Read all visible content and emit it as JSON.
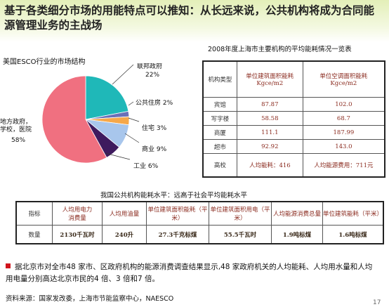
{
  "title": "基于各类细分市场的用能特点可以推知：从长远来说，公共机构将成为合同能源管理业务的主战场",
  "chart_data": {
    "type": "pie",
    "title": "美国ESCO行业的市场结构",
    "slices": [
      {
        "label": "联邦政府",
        "value": 22,
        "value_label": "22%",
        "color": "#1fb8b8"
      },
      {
        "label": "公共住房",
        "value": 2,
        "value_label": "2%",
        "color": "#6a70b8"
      },
      {
        "label": "住宅",
        "value": 3,
        "value_label": "3%",
        "color": "#f6a84a"
      },
      {
        "label": "商业",
        "value": 9,
        "value_label": "9%",
        "color": "#a8c6ec"
      },
      {
        "label": "工业",
        "value": 6,
        "value_label": "6%",
        "color": "#3e1a5e"
      },
      {
        "label": "地方政府，学校，医院",
        "value": 58,
        "value_label": "58%",
        "color": "#f07080"
      }
    ]
  },
  "table1": {
    "title": "2008年度上海市主要机构的平均能耗情况一览表",
    "headers": [
      "机构类型",
      "单位建筑面积能耗\nKgce/m2",
      "单位空调面积能耗\nKgce/m2"
    ],
    "rows": [
      [
        "宾馆",
        "87.87",
        "102.0"
      ],
      [
        "写字楼",
        "58.58",
        "68.7"
      ],
      [
        "商厦",
        "111.1",
        "187.99"
      ],
      [
        "超市",
        "92.92",
        "143.0"
      ],
      [
        "高校",
        "人均能耗：416",
        "人均能源费用：711元"
      ]
    ]
  },
  "table2": {
    "title": "我国公共机构能耗水平：远高于社会平均能耗水平",
    "headers": [
      "指标",
      "人均用电力\n消费量",
      "人均用油量",
      "单位建筑面积能耗（平米）",
      "单位建筑面积用电（平米）",
      "人均能源消费总量",
      "单位建筑能耗（平米）"
    ],
    "row": [
      "数量",
      "2130千瓦时",
      "240升",
      "27.3千克标煤",
      "55.5千瓦时",
      "1.9吨标煤",
      "1.6吨标煤"
    ]
  },
  "note": "据北京市对全市48 家市、区政府机构的能源消费调查结果显示,48 家政府机关的人均能耗、人均用水量和人均用电量分别高达北京市民的4 倍、3 倍和7 倍。",
  "source": "资料来源：国家发改委，上海市节能监察中心，NAESCO",
  "page_number": "17"
}
